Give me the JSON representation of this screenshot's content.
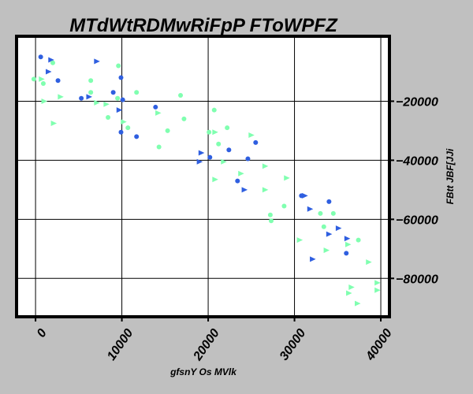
{
  "chart_data": {
    "type": "scatter",
    "title": "MTdWtRDMwRiFpP FToWPFZ",
    "xlabel": "gfsnY Os MVlk",
    "ylabel": "FBtt JBF[JJi",
    "xlim": [
      -2200,
      41000
    ],
    "ylim": [
      -93000,
      2000
    ],
    "grid": true,
    "x_ticks": [
      0,
      10000,
      20000,
      30000,
      40000
    ],
    "x_tick_labels": [
      "0",
      "10000",
      "20000",
      "30000",
      "40000"
    ],
    "y_ticks": [
      -20000,
      -40000,
      -60000,
      -80000
    ],
    "y_tick_labels": [
      "−20000",
      "−40000",
      "−60000",
      "−80000"
    ],
    "y_axis_side": "right",
    "series": [
      {
        "marker": "circle",
        "color": "#2f5fe0",
        "points": [
          [
            600,
            -5000
          ],
          [
            2600,
            -13000
          ],
          [
            5300,
            -19000
          ],
          [
            9000,
            -17000
          ],
          [
            9900,
            -12000
          ],
          [
            10100,
            -19500
          ],
          [
            9900,
            -30500
          ],
          [
            11700,
            -32000
          ],
          [
            13900,
            -22000
          ],
          [
            20200,
            -39000
          ],
          [
            22400,
            -36500
          ],
          [
            23400,
            -47000
          ],
          [
            24600,
            -39500
          ],
          [
            25500,
            -34000
          ],
          [
            30800,
            -52000
          ],
          [
            34000,
            -54000
          ],
          [
            36000,
            -71500
          ]
        ]
      },
      {
        "marker": "triangle",
        "color": "#2f5fe0",
        "points": [
          [
            1800,
            -6000
          ],
          [
            1500,
            -10000
          ],
          [
            7100,
            -6500
          ],
          [
            6200,
            -18500
          ],
          [
            9700,
            -23000
          ],
          [
            19000,
            -40500
          ],
          [
            19200,
            -37500
          ],
          [
            24200,
            -50000
          ],
          [
            31200,
            -52000
          ],
          [
            31800,
            -56500
          ],
          [
            32100,
            -73500
          ],
          [
            34000,
            -65000
          ],
          [
            35100,
            -63000
          ],
          [
            36100,
            -66500
          ]
        ]
      },
      {
        "marker": "circle",
        "color": "#80ffb0",
        "points": [
          [
            -200,
            -12500
          ],
          [
            2000,
            -7000
          ],
          [
            900,
            -14000
          ],
          [
            6400,
            -13000
          ],
          [
            6400,
            -17000
          ],
          [
            8400,
            -25500
          ],
          [
            9600,
            -8000
          ],
          [
            9500,
            -19000
          ],
          [
            10700,
            -29000
          ],
          [
            11700,
            -17000
          ],
          [
            14300,
            -35500
          ],
          [
            15300,
            -30000
          ],
          [
            16800,
            -18000
          ],
          [
            17200,
            -26000
          ],
          [
            20100,
            -30500
          ],
          [
            20700,
            -23000
          ],
          [
            21200,
            -34500
          ],
          [
            22200,
            -29000
          ],
          [
            27200,
            -58500
          ],
          [
            27300,
            -60500
          ],
          [
            28800,
            -55500
          ],
          [
            33000,
            -58000
          ],
          [
            33400,
            -62500
          ],
          [
            34500,
            -58000
          ],
          [
            37400,
            -67000
          ]
        ]
      },
      {
        "marker": "triangle",
        "color": "#80ffb0",
        "points": [
          [
            700,
            -12500
          ],
          [
            1000,
            -20000
          ],
          [
            2100,
            -27500
          ],
          [
            2900,
            -18500
          ],
          [
            7100,
            -20500
          ],
          [
            8200,
            -21000
          ],
          [
            10200,
            -27000
          ],
          [
            14200,
            -24000
          ],
          [
            20800,
            -30500
          ],
          [
            20800,
            -46500
          ],
          [
            21800,
            -40500
          ],
          [
            23800,
            -44500
          ],
          [
            25000,
            -31500
          ],
          [
            26600,
            -42000
          ],
          [
            26600,
            -50000
          ],
          [
            29100,
            -46000
          ],
          [
            30600,
            -67000
          ],
          [
            33700,
            -70500
          ],
          [
            36200,
            -68500
          ],
          [
            36300,
            -85000
          ],
          [
            36600,
            -83000
          ],
          [
            37300,
            -88500
          ],
          [
            38600,
            -74500
          ],
          [
            39600,
            -81500
          ],
          [
            39600,
            -84000
          ]
        ]
      }
    ]
  }
}
